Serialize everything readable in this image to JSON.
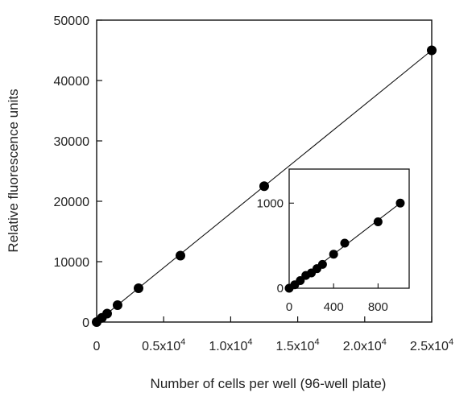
{
  "chart_data": {
    "type": "scatter",
    "title": "",
    "xlabel": "Number of cells per well (96-well plate)",
    "ylabel": "Relative fluorescence units",
    "xlim": [
      0,
      25000
    ],
    "ylim": [
      0,
      50000
    ],
    "x_ticks": [
      {
        "value": 0,
        "mantissa": "0",
        "times": "",
        "exponent": ""
      },
      {
        "value": 5000,
        "mantissa": "0.5",
        "times": "x10",
        "exponent": "4"
      },
      {
        "value": 10000,
        "mantissa": "1.0",
        "times": "x10",
        "exponent": "4"
      },
      {
        "value": 15000,
        "mantissa": "1.5",
        "times": "x10",
        "exponent": "4"
      },
      {
        "value": 20000,
        "mantissa": "2.0",
        "times": "x10",
        "exponent": "4"
      },
      {
        "value": 25000,
        "mantissa": "2.5",
        "times": "x10",
        "exponent": "4"
      }
    ],
    "y_ticks": [
      {
        "value": 0,
        "label": "0"
      },
      {
        "value": 10000,
        "label": "10000"
      },
      {
        "value": 20000,
        "label": "20000"
      },
      {
        "value": 30000,
        "label": "30000"
      },
      {
        "value": 40000,
        "label": "40000"
      },
      {
        "value": 50000,
        "label": "50000"
      }
    ],
    "points": [
      {
        "x": 0,
        "y": 0
      },
      {
        "x": 390,
        "y": 700
      },
      {
        "x": 780,
        "y": 1400
      },
      {
        "x": 1560,
        "y": 2800
      },
      {
        "x": 3125,
        "y": 5600
      },
      {
        "x": 6250,
        "y": 11000
      },
      {
        "x": 12500,
        "y": 22500
      },
      {
        "x": 25000,
        "y": 45000
      }
    ],
    "fit_line": {
      "x": [
        0,
        25000
      ],
      "y": [
        0,
        45000
      ]
    },
    "grid": false,
    "legend": "none",
    "marker_color": "#000000",
    "inset": {
      "type": "scatter",
      "xlim": [
        0,
        1080
      ],
      "ylim": [
        0,
        1400
      ],
      "x_ticks": [
        {
          "value": 0,
          "label": "0"
        },
        {
          "value": 400,
          "label": "400"
        },
        {
          "value": 800,
          "label": "800"
        }
      ],
      "y_ticks": [
        {
          "value": 0,
          "label": "0"
        },
        {
          "value": 1000,
          "label": "1000"
        }
      ],
      "points": [
        {
          "x": 0,
          "y": 0
        },
        {
          "x": 50,
          "y": 40
        },
        {
          "x": 100,
          "y": 90
        },
        {
          "x": 150,
          "y": 150
        },
        {
          "x": 200,
          "y": 180
        },
        {
          "x": 250,
          "y": 230
        },
        {
          "x": 300,
          "y": 280
        },
        {
          "x": 400,
          "y": 400
        },
        {
          "x": 500,
          "y": 530
        },
        {
          "x": 800,
          "y": 780
        },
        {
          "x": 1000,
          "y": 1000
        }
      ],
      "fit_line": {
        "x": [
          0,
          1000
        ],
        "y": [
          0,
          1000
        ]
      }
    }
  }
}
